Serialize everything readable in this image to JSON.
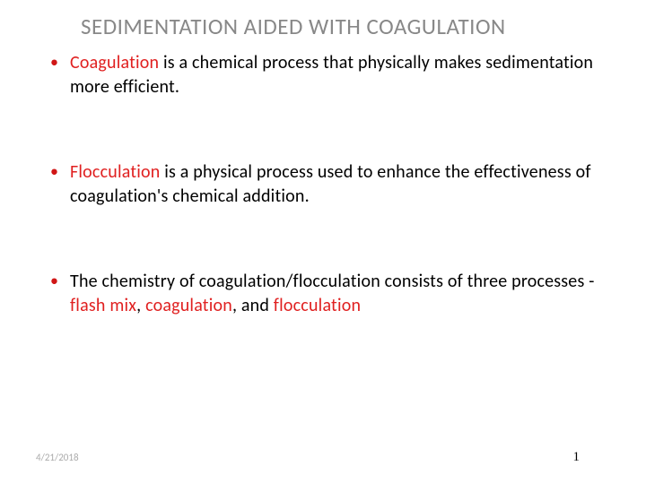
{
  "title": "SEDIMENTATION AIDED WITH COAGULATION",
  "bullets": [
    {
      "hl": "Coagulation",
      "rest": " is a chemical process that physically makes sedimentation more efficient."
    },
    {
      "hl": "Flocculation",
      "rest": " is a physical process used to enhance the effectiveness of coagulation's chemical addition."
    }
  ],
  "bullet3": {
    "pre": "The chemistry of coagulation/flocculation consists of three processes - ",
    "p1": "flash mix",
    "sep1": ", ",
    "p2": "coagulation",
    "sep2": ", and ",
    "p3": "flocculation"
  },
  "footer": {
    "date": "4/21/2018",
    "page": "1"
  },
  "colors": {
    "title": "#888888",
    "highlight": "#e02020",
    "bullet_marker": "#d01616",
    "text": "#000000",
    "date": "#aaaaaa",
    "background": "#ffffff"
  }
}
